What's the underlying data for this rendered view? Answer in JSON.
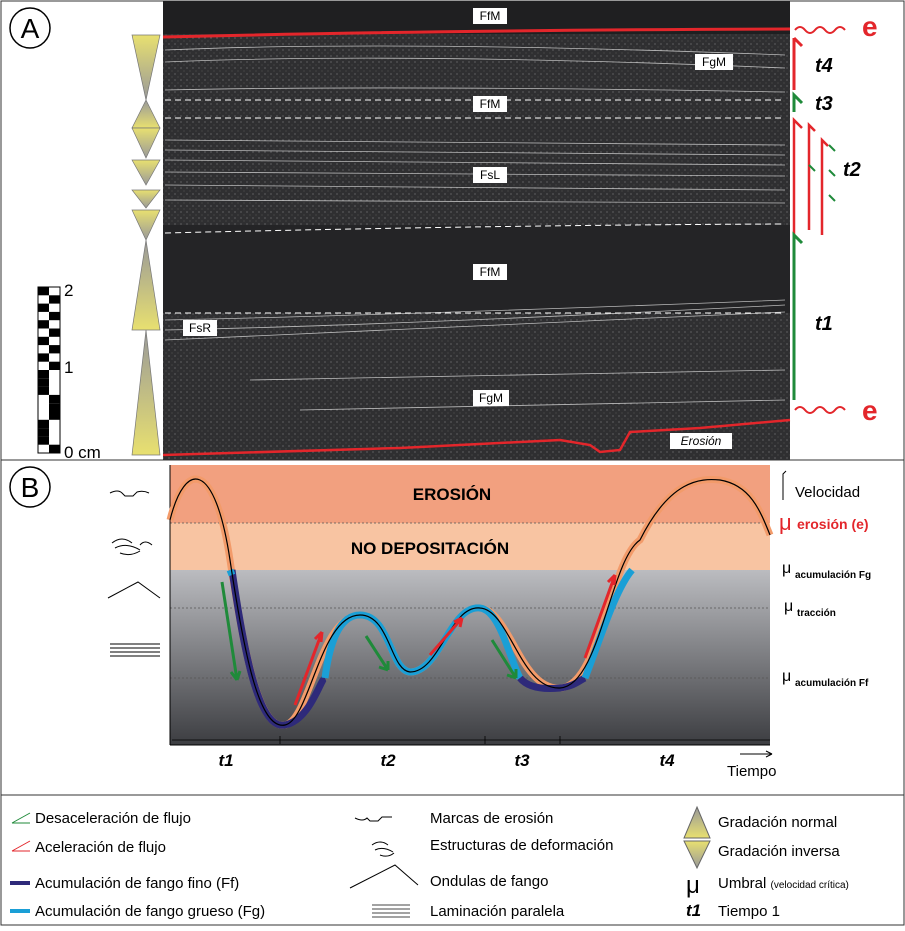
{
  "panel_a": {
    "label": "A",
    "facies": [
      "FfM",
      "FgM",
      "FfM",
      "FsL",
      "FfM",
      "FsR",
      "FgM"
    ],
    "erosion_label": "Erosión",
    "scale": {
      "ticks": [
        "2",
        "1",
        "0 cm"
      ]
    },
    "events": {
      "e_top": "e",
      "e_bottom": "e",
      "t4": "t4",
      "t3": "t3",
      "t2": "t2",
      "t1": "t1"
    }
  },
  "panel_b": {
    "label": "B",
    "zones": {
      "erosion": "EROSIÓN",
      "no_deposition": "NO DEPOSITACIÓN"
    },
    "thresholds": {
      "velocity": "Velocidad",
      "mu": "μ",
      "erosion": "erosión (e)",
      "acc_fg": "acumulación Fg",
      "traction": "tracción",
      "acc_ff": "acumulación Ff"
    },
    "times": [
      "t1",
      "t2",
      "t3",
      "t4"
    ],
    "time_axis": "Tiempo"
  },
  "legend": {
    "col1": [
      "Desaceleración de flujo",
      "Aceleración de flujo",
      "Acumulación de fango fino (Ff)",
      "Acumulación de fango grueso (Fg)"
    ],
    "col2": [
      "Marcas de erosión",
      "Estructuras de deformación",
      "Ondulas de fango",
      "Laminación paralela"
    ],
    "col3": {
      "normal": "Gradación normal",
      "inverse": "Gradación inversa",
      "mu": "μ",
      "umbral": "Umbral",
      "umbral_note": "(velocidad crítica)",
      "t1": "t1",
      "tiempo": "Tiempo 1"
    }
  },
  "colors": {
    "red": "#e3262b",
    "green": "#1f8a3a",
    "ff": "#2e2a7a",
    "fg": "#1a9fd6",
    "erosion": "#f2a07f",
    "nodep": "#f8c4a2"
  }
}
